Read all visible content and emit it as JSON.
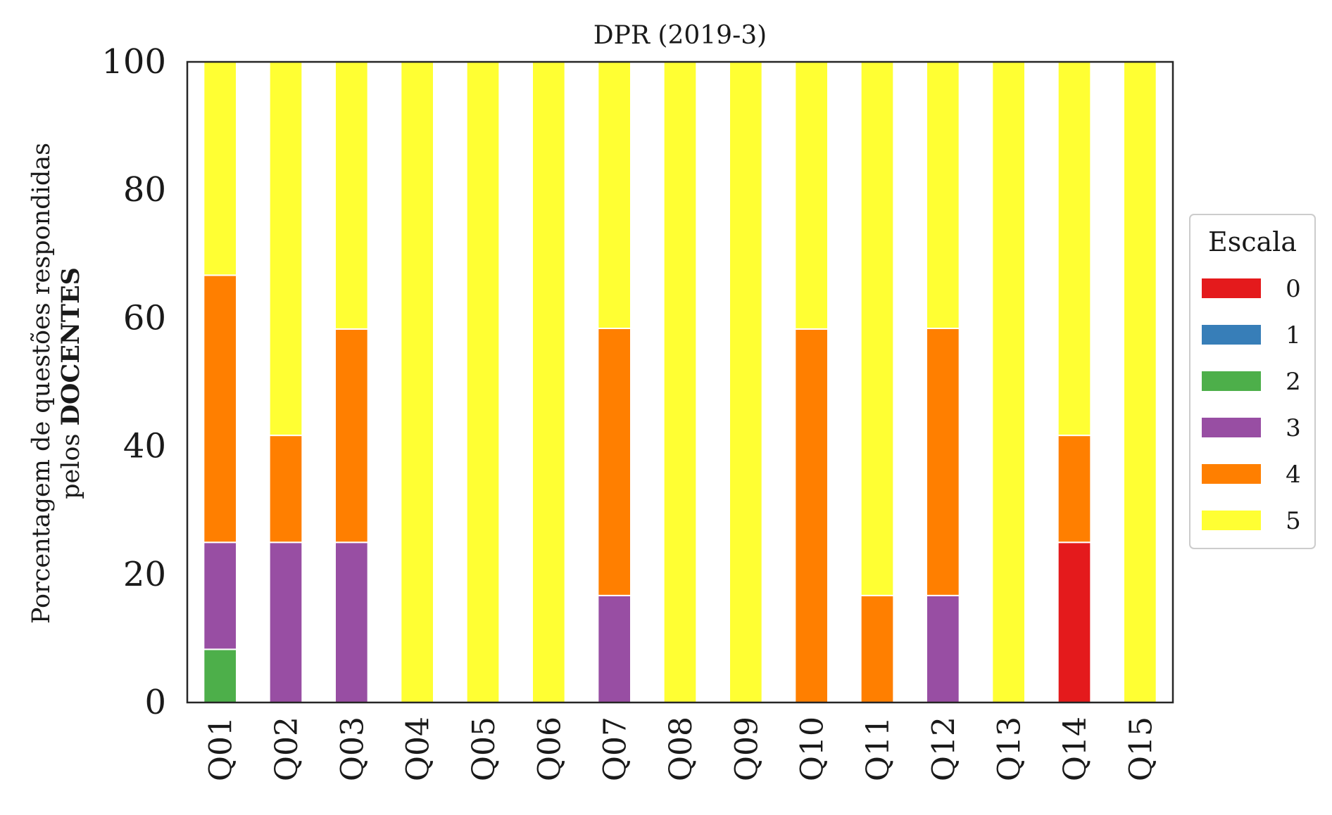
{
  "chart_data": {
    "type": "bar",
    "stacked": true,
    "title": "DPR (2019-3)",
    "ylabel_line1": "Porcentagem de questões respondidas",
    "ylabel_line2_prefix": "pelos ",
    "ylabel_line2_bold": "DOCENTES",
    "ylim": [
      0,
      100
    ],
    "yticks": [
      0,
      20,
      40,
      60,
      80,
      100
    ],
    "categories": [
      "Q01",
      "Q02",
      "Q03",
      "Q04",
      "Q05",
      "Q06",
      "Q07",
      "Q08",
      "Q09",
      "Q10",
      "Q11",
      "Q12",
      "Q13",
      "Q14",
      "Q15"
    ],
    "legend_title": "Escala",
    "legend_position": "center-right outside",
    "grid": false,
    "series": [
      {
        "name": "0",
        "color": "#e41a1c",
        "values": [
          0,
          0,
          0,
          0,
          0,
          0,
          0,
          0,
          0,
          0,
          0,
          0,
          0,
          25,
          0
        ]
      },
      {
        "name": "1",
        "color": "#377eb8",
        "values": [
          0,
          0,
          0,
          0,
          0,
          0,
          0,
          0,
          0,
          0,
          0,
          0,
          0,
          0,
          0
        ]
      },
      {
        "name": "2",
        "color": "#4daf4a",
        "values": [
          8.3,
          0,
          0,
          0,
          0,
          0,
          0,
          0,
          0,
          0,
          0,
          0,
          0,
          0,
          0
        ]
      },
      {
        "name": "3",
        "color": "#984ea3",
        "values": [
          16.7,
          25,
          25,
          0,
          0,
          0,
          16.7,
          0,
          0,
          0,
          0,
          16.7,
          0,
          0,
          0
        ]
      },
      {
        "name": "4",
        "color": "#ff7f00",
        "values": [
          41.7,
          16.7,
          33.3,
          0,
          0,
          0,
          41.7,
          0,
          0,
          58.3,
          16.7,
          41.7,
          0,
          16.7,
          0
        ]
      },
      {
        "name": "5",
        "color": "#ffff33",
        "values": [
          33.3,
          58.3,
          41.7,
          100,
          100,
          100,
          41.7,
          100,
          100,
          41.7,
          83.3,
          41.7,
          100,
          58.3,
          100
        ]
      }
    ]
  }
}
